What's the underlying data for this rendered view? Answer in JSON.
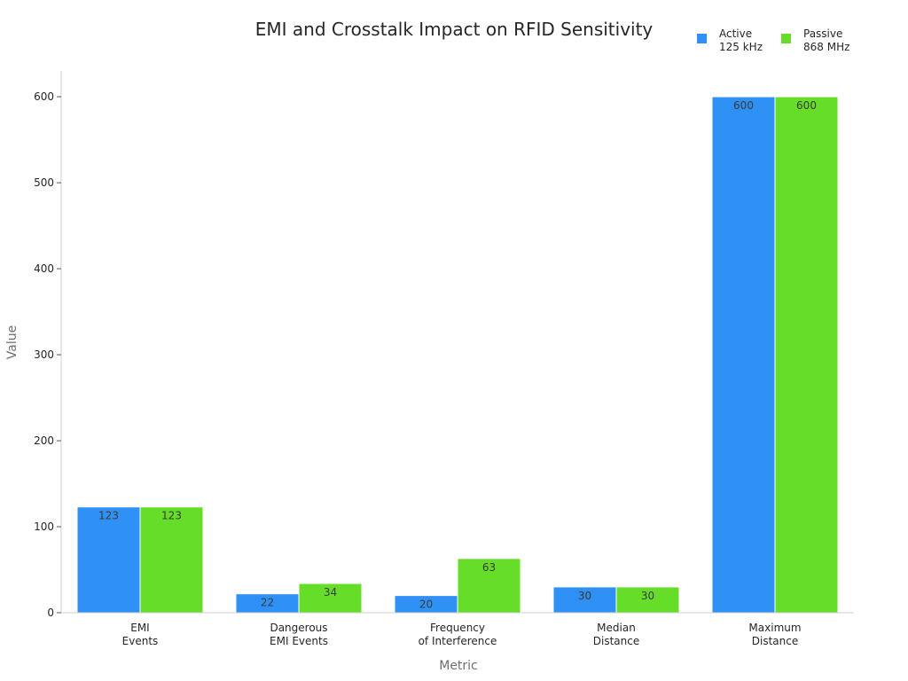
{
  "chart_data": {
    "type": "bar",
    "title": "EMI and Crosstalk Impact on RFID Sensitivity",
    "xlabel": "Metric",
    "ylabel": "Value",
    "categories": [
      [
        "EMI",
        "Events"
      ],
      [
        "Dangerous",
        "EMI Events"
      ],
      [
        "Frequency",
        "of Interference"
      ],
      [
        "Median",
        "Distance"
      ],
      [
        "Maximum",
        "Distance"
      ]
    ],
    "series": [
      {
        "name": [
          "Active",
          "125 kHz"
        ],
        "color": "#2f91f5",
        "values": [
          123,
          22,
          20,
          30,
          600
        ]
      },
      {
        "name": [
          "Passive",
          "868 MHz"
        ],
        "color": "#66dd28",
        "values": [
          123,
          34,
          63,
          30,
          600
        ]
      }
    ],
    "ylim": [
      0,
      630
    ],
    "yticks": [
      0,
      100,
      200,
      300,
      400,
      500,
      600
    ],
    "grid": false,
    "legend_position": "top-right"
  }
}
